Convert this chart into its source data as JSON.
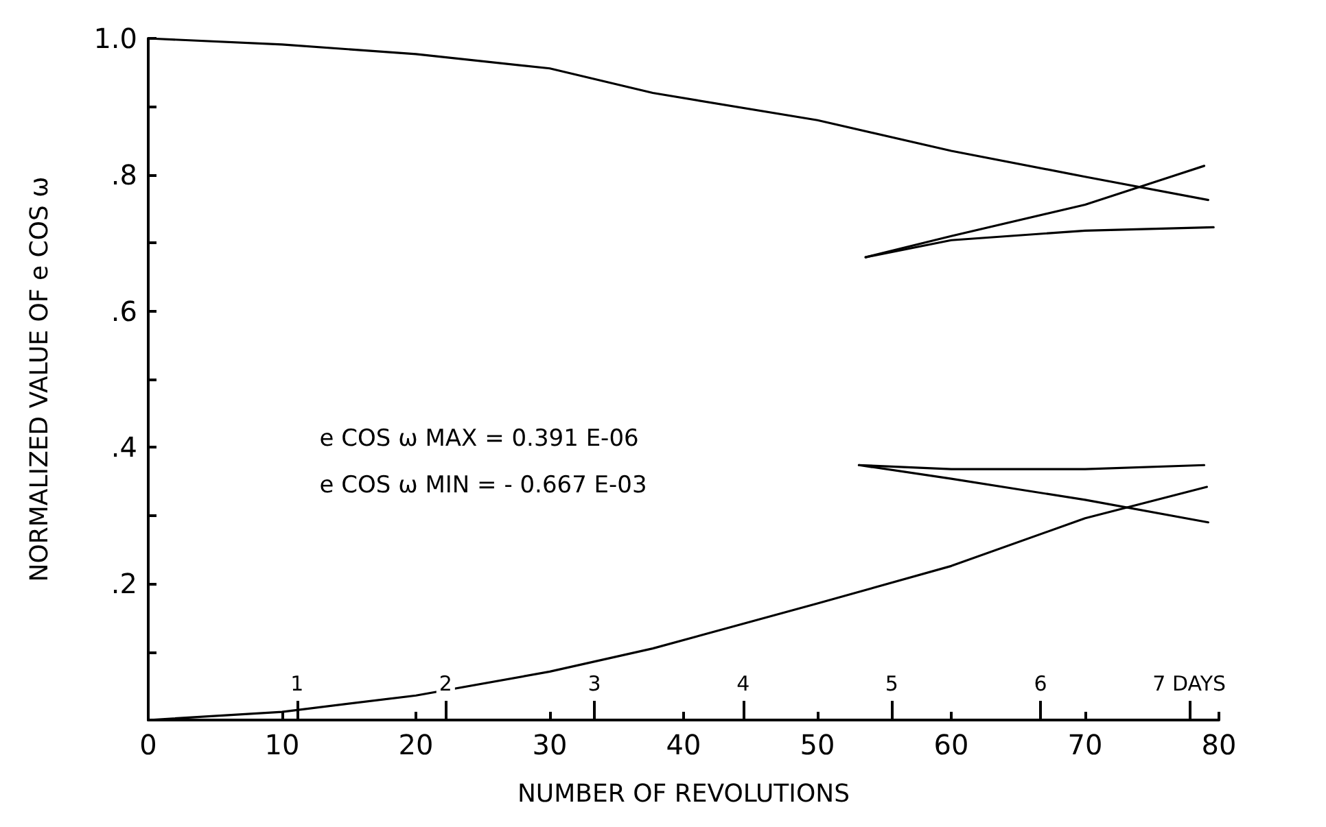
{
  "chart_data": {
    "type": "line",
    "xlabel": "NUMBER OF REVOLUTIONS",
    "ylabel": "NORMALIZED VALUE OF e COS ω",
    "xlim": [
      0,
      80
    ],
    "ylim": [
      0,
      1
    ],
    "xticks": [
      0,
      10,
      20,
      30,
      40,
      50,
      60,
      70,
      80
    ],
    "yticks": [
      {
        "value": 0.1,
        "label": null
      },
      {
        "value": 0.2,
        "label": ".2"
      },
      {
        "value": 0.3,
        "label": null
      },
      {
        "value": 0.4,
        "label": ".4"
      },
      {
        "value": 0.5,
        "label": null
      },
      {
        "value": 0.6,
        "label": ".6"
      },
      {
        "value": 0.7,
        "label": null
      },
      {
        "value": 0.8,
        "label": ".8"
      },
      {
        "value": 0.9,
        "label": null
      },
      {
        "value": 1.0,
        "label": "1.0"
      }
    ],
    "x2lim": [
      0,
      7.2
    ],
    "x2ticks": [
      {
        "value": 1,
        "label": "1"
      },
      {
        "value": 2,
        "label": "2"
      },
      {
        "value": 3,
        "label": "3"
      },
      {
        "value": 4,
        "label": "4"
      },
      {
        "value": 5,
        "label": "5"
      },
      {
        "value": 6,
        "label": "6"
      },
      {
        "value": 7,
        "label": "7 DAYS"
      }
    ],
    "grid": false,
    "marker": "none",
    "line_style": "solid",
    "series": [
      {
        "color": "#000000",
        "x": [
          0,
          10,
          20,
          30,
          37.7,
          50,
          60,
          70,
          79.2
        ],
        "values": [
          1.0,
          0.991,
          0.977,
          0.956,
          0.92,
          0.88,
          0.835,
          0.797,
          0.763
        ]
      },
      {
        "color": "#000000",
        "x": [
          0,
          10,
          20,
          30,
          37.7,
          50,
          60,
          70,
          79.1
        ],
        "values": [
          0,
          0.012,
          0.036,
          0.071,
          0.105,
          0.171,
          0.226,
          0.296,
          0.342
        ]
      },
      {
        "color": "#000000",
        "x": [
          53.6,
          60,
          70,
          78.9
        ],
        "values": [
          0.679,
          0.71,
          0.756,
          0.813
        ]
      },
      {
        "color": "#000000",
        "x": [
          53.6,
          60,
          70,
          79.6
        ],
        "values": [
          0.679,
          0.704,
          0.718,
          0.723
        ]
      },
      {
        "color": "#000000",
        "x": [
          53.1,
          60,
          70,
          78.9
        ],
        "values": [
          0.374,
          0.368,
          0.368,
          0.374
        ]
      },
      {
        "color": "#000000",
        "x": [
          53.1,
          60,
          70,
          79.2
        ],
        "values": [
          0.374,
          0.354,
          0.323,
          0.29
        ]
      }
    ],
    "annotations": [
      "e COS ω MAX = 0.391 E-06",
      "e COS ω MIN = - 0.667 E-03"
    ]
  }
}
